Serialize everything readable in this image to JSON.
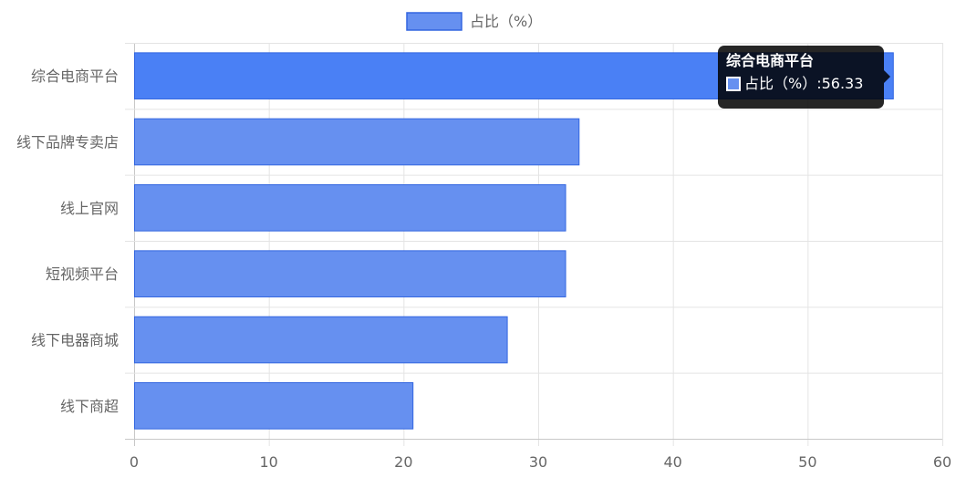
{
  "chart_data": {
    "type": "bar",
    "orientation": "horizontal",
    "categories": [
      "综合电商平台",
      "线下品牌专卖店",
      "线上官网",
      "短视频平台",
      "线下电器商城",
      "线下商超"
    ],
    "series": [
      {
        "name": "占比（%）",
        "values": [
          56.33,
          33.0,
          32.0,
          32.0,
          27.67,
          20.67
        ]
      }
    ],
    "xlim": [
      0,
      60
    ],
    "xticks": [
      0,
      10,
      20,
      30,
      40,
      50,
      60
    ],
    "grid": true,
    "legend_position": "top",
    "colors": {
      "bar_fill": "#6690f0",
      "bar_fill_active": "#4a80f5",
      "bar_border": "#3366e0"
    }
  },
  "tooltip": {
    "title": "综合电商平台",
    "series_label": "占比（%）",
    "separator": ": ",
    "value": "56.33"
  }
}
